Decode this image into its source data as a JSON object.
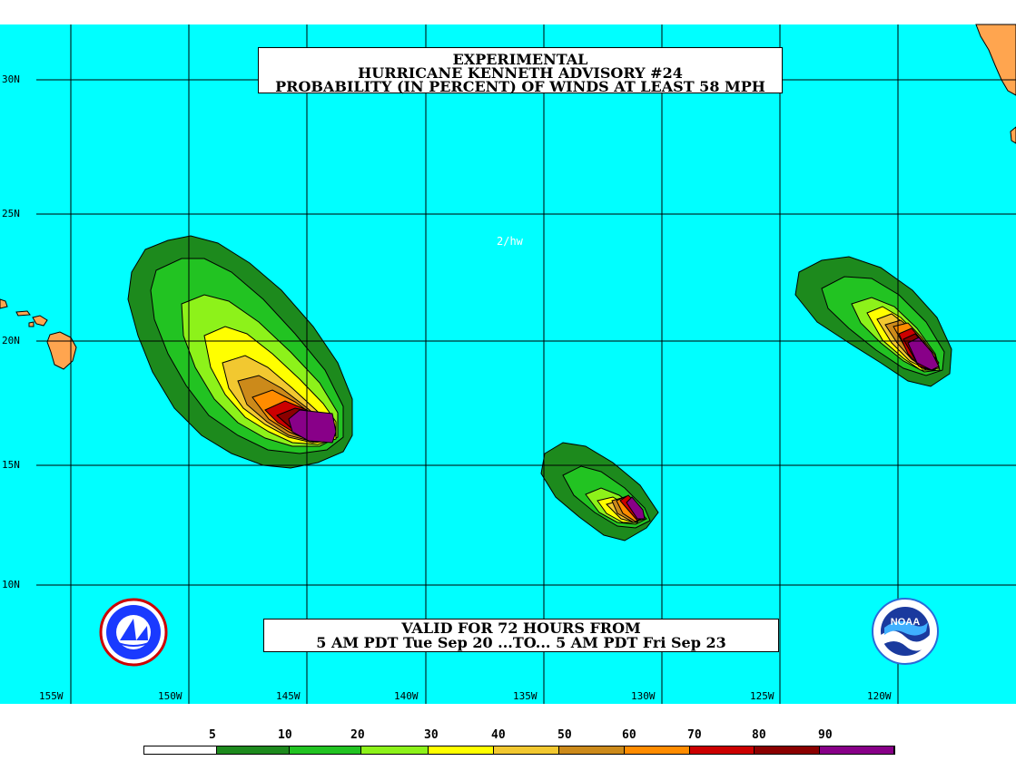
{
  "title": {
    "line1": "EXPERIMENTAL",
    "line2": "HURRICANE KENNETH ADVISORY #24",
    "line3": "PROBABILITY (IN PERCENT) OF WINDS AT LEAST 58 MPH"
  },
  "stamp": "2/hw",
  "valid": {
    "line1": "VALID FOR 72 HOURS FROM",
    "line2": "5 AM PDT Tue Sep 20 ...TO... 5 AM PDT Fri Sep 23"
  },
  "lat_labels": [
    "30N",
    "25N",
    "20N",
    "15N",
    "10N"
  ],
  "lon_labels": [
    "155W",
    "150W",
    "145W",
    "140W",
    "135W",
    "130W",
    "125W",
    "120W"
  ],
  "legend": {
    "values": [
      "5",
      "10",
      "20",
      "30",
      "40",
      "50",
      "60",
      "70",
      "80",
      "90"
    ],
    "colors": [
      "#ffffff",
      "#1d8a1d",
      "#22c322",
      "#8df21a",
      "#ffff00",
      "#f2c830",
      "#cc8a1a",
      "#ff8c00",
      "#cc0000",
      "#8b0000",
      "#880088"
    ]
  },
  "colors": {
    "ocean": "#00ffff",
    "land": "#ffa54f",
    "grid": "#000000"
  },
  "logos": {
    "left": "national-weather-service-logo",
    "right": "noaa-logo",
    "noaa_text": "NOAA"
  }
}
